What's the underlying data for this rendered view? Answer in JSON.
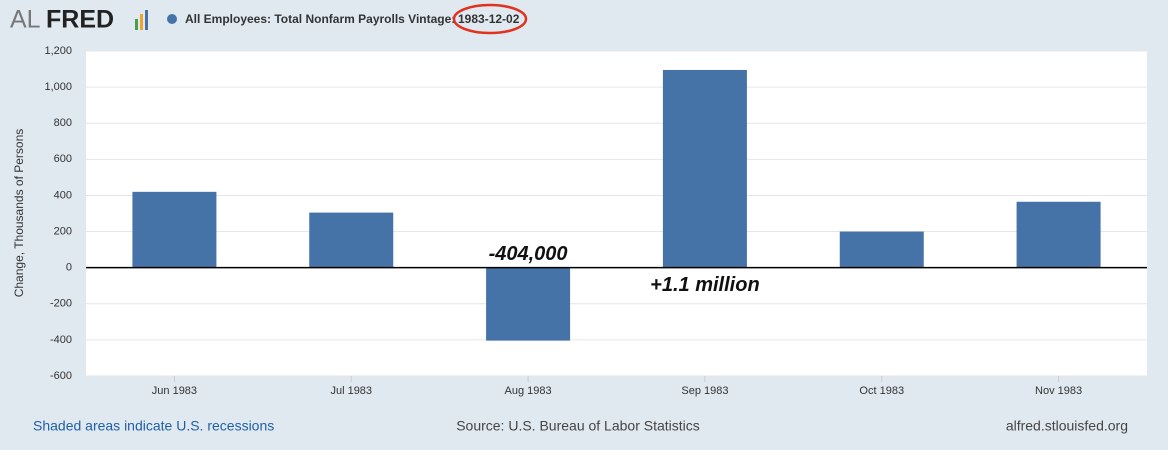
{
  "logo": {
    "al": "AL",
    "fred": "FRED"
  },
  "chart_data": {
    "type": "bar",
    "title": "All Employees: Total Nonfarm Payrolls Vintage:",
    "vintage": "1983-12-02",
    "ylabel": "Change, Thousands of Persons",
    "categories": [
      "Jun 1983",
      "Jul 1983",
      "Aug 1983",
      "Sep 1983",
      "Oct 1983",
      "Nov 1983"
    ],
    "values": [
      420,
      305,
      -404,
      1095,
      200,
      365
    ],
    "color": "#4572a7",
    "ylim": [
      -600,
      1200
    ],
    "yticks": [
      -600,
      -400,
      -200,
      0,
      200,
      400,
      600,
      800,
      {
        "value": 1000,
        "label": "1,000"
      },
      {
        "value": 1200,
        "label": "1,200"
      }
    ],
    "grid": true,
    "annotations": [
      "-404,000",
      "+1.1 million"
    ],
    "footer": {
      "note": "Shaded areas indicate U.S. recessions",
      "source": "Source: U.S. Bureau of Labor Statistics",
      "site": "alfred.stlouisfed.org"
    }
  }
}
